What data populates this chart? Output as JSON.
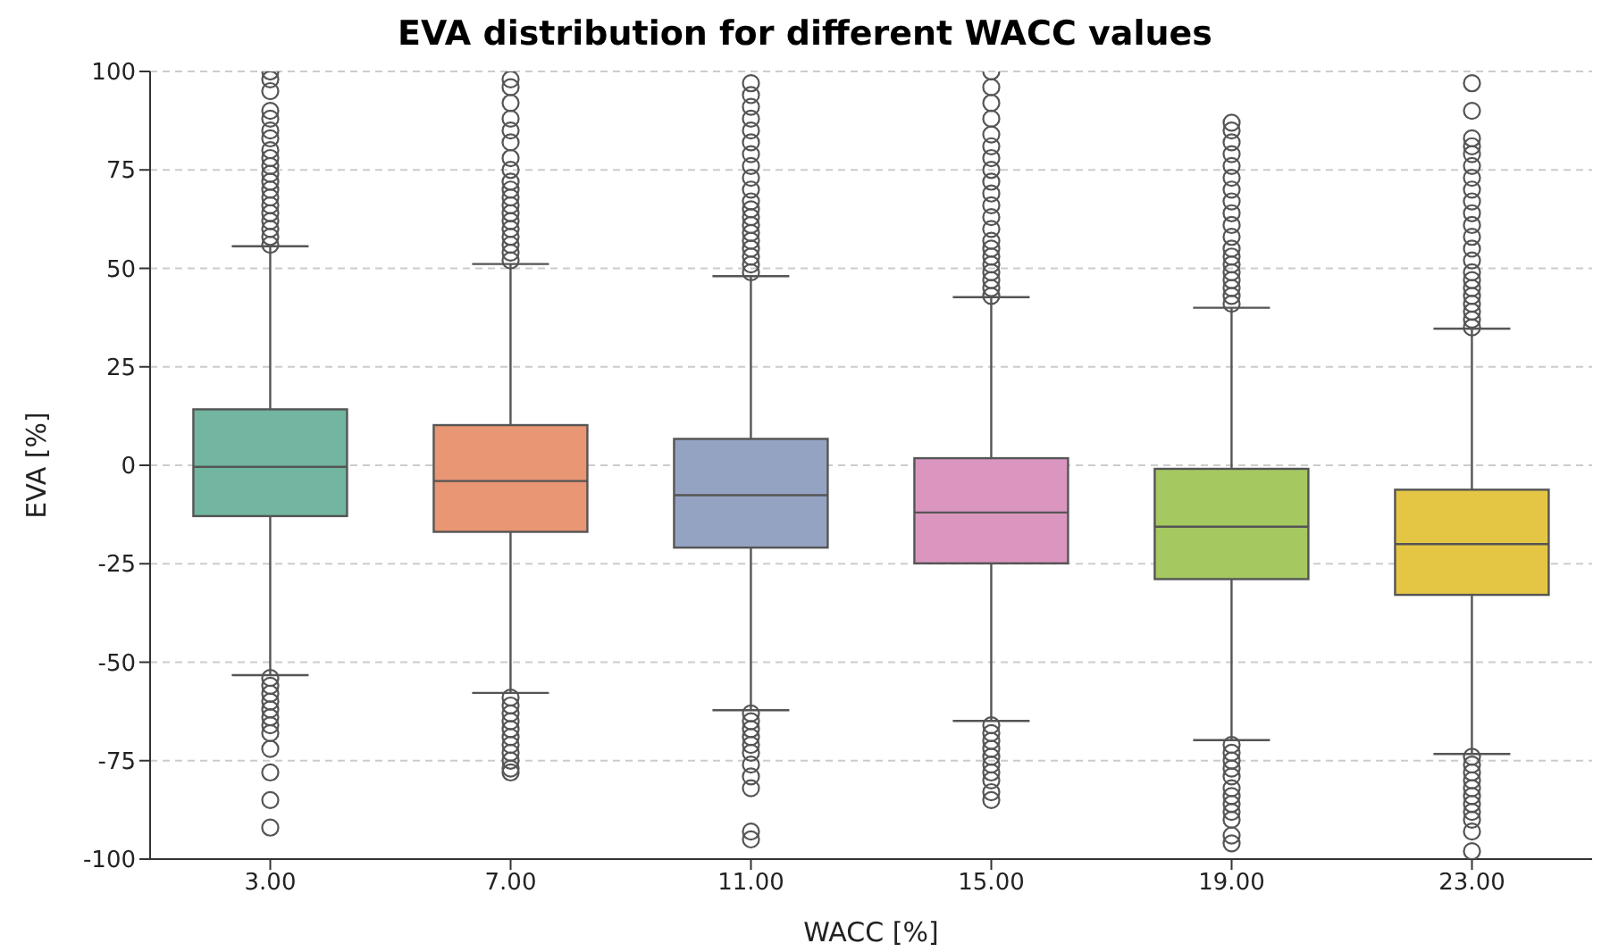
{
  "chart_data": {
    "type": "box",
    "title": "EVA distribution for different WACC values",
    "xlabel": "WACC [%]",
    "ylabel": "EVA [%]",
    "categories": [
      "3.00",
      "7.00",
      "11.00",
      "15.00",
      "19.00",
      "23.00"
    ],
    "colors": [
      "#72b6a1",
      "#e99675",
      "#95a3c3",
      "#db96c0",
      "#a5c861",
      "#e5c644"
    ],
    "boxes": [
      {
        "low": -53.3,
        "q1": -12.9,
        "median": -0.4,
        "q3": 14.2,
        "high": 55.6,
        "outliers": [
          56,
          58,
          60,
          62,
          64,
          66,
          68,
          70,
          72,
          74,
          76,
          78,
          80,
          83,
          85,
          88,
          90,
          95,
          98,
          100,
          -54,
          -56,
          -58,
          -60,
          -62,
          -64,
          -66,
          -68,
          -72,
          -78,
          -85,
          -92
        ]
      },
      {
        "low": -57.8,
        "q1": -16.9,
        "median": -4,
        "q3": 10.2,
        "high": 51.1,
        "outliers": [
          52,
          54,
          56,
          58,
          60,
          62,
          64,
          66,
          68,
          70,
          72,
          75,
          78,
          82,
          85,
          88,
          92,
          96,
          98,
          -59,
          -61,
          -63,
          -65,
          -67,
          -69,
          -71,
          -73,
          -75,
          -77,
          -78
        ]
      },
      {
        "low": -62.2,
        "q1": -20.9,
        "median": -7.6,
        "q3": 6.7,
        "high": 48,
        "outliers": [
          49,
          51,
          53,
          55,
          57,
          59,
          61,
          63,
          65,
          67,
          70,
          73,
          76,
          79,
          82,
          85,
          88,
          91,
          94,
          97,
          -63,
          -65,
          -67,
          -69,
          -71,
          -73,
          -76,
          -79,
          -82,
          -93,
          -95
        ]
      },
      {
        "low": -64.9,
        "q1": -24.9,
        "median": -12,
        "q3": 1.8,
        "high": 42.7,
        "outliers": [
          43,
          45,
          47,
          49,
          51,
          53,
          55,
          57,
          60,
          63,
          66,
          69,
          72,
          75,
          78,
          81,
          84,
          88,
          92,
          96,
          100,
          -66,
          -68,
          -70,
          -72,
          -74,
          -76,
          -78,
          -80,
          -83,
          -85
        ]
      },
      {
        "low": -69.8,
        "q1": -28.9,
        "median": -15.6,
        "q3": -0.9,
        "high": 40,
        "outliers": [
          41,
          43,
          45,
          47,
          49,
          51,
          53,
          55,
          58,
          61,
          64,
          67,
          70,
          73,
          76,
          79,
          82,
          85,
          87,
          -71,
          -73,
          -75,
          -77,
          -79,
          -82,
          -84,
          -86,
          -88,
          -90,
          -94,
          -96
        ]
      },
      {
        "low": -73.3,
        "q1": -32.9,
        "median": -20,
        "q3": -6.2,
        "high": 34.7,
        "outliers": [
          35,
          37,
          39,
          41,
          43,
          45,
          47,
          49,
          52,
          55,
          58,
          61,
          64,
          67,
          70,
          73,
          76,
          79,
          81,
          83,
          90,
          97,
          -74,
          -76,
          -78,
          -80,
          -82,
          -84,
          -86,
          -88,
          -90,
          -93,
          -98
        ]
      }
    ],
    "ylim": [
      -100,
      100
    ],
    "yticks": [
      -100,
      -75,
      -50,
      -25,
      0,
      25,
      50,
      75,
      100
    ],
    "grid": "y",
    "marker": "circle"
  }
}
